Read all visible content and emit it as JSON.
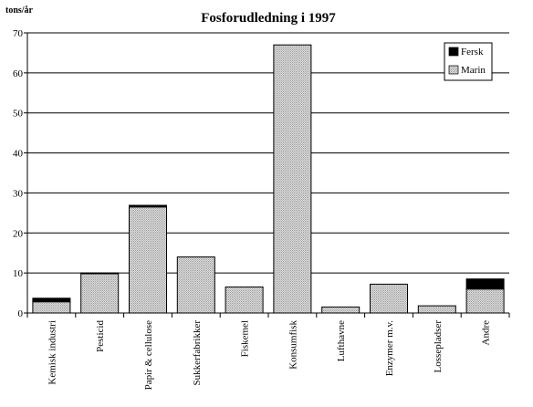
{
  "chart_data": {
    "type": "bar",
    "stacked": true,
    "title": "Fosforudledning i 1997",
    "ylabel": "tons/år",
    "xlabel": "",
    "ylim": [
      0,
      70
    ],
    "yticks": [
      0,
      10,
      20,
      30,
      40,
      50,
      60,
      70
    ],
    "grid": true,
    "legend_position": "top-right",
    "categories": [
      "Kemisk industri",
      "Pesticid",
      "Papir & cellulose",
      "Sukkerfabrikker",
      "Fiskemel",
      "Konsumfisk",
      "Lufthavne",
      "Enzymer m.v.",
      "Lossepladser",
      "Andre"
    ],
    "series": [
      {
        "name": "Marin",
        "color": "#c8c8c8",
        "values": [
          2.8,
          9.8,
          26.5,
          14.0,
          6.5,
          67.0,
          1.5,
          7.2,
          1.8,
          6.0
        ]
      },
      {
        "name": "Fersk",
        "color": "#000000",
        "values": [
          0.9,
          0.2,
          0.4,
          0.0,
          0.0,
          0.0,
          0.0,
          0.0,
          0.0,
          2.5
        ]
      }
    ]
  }
}
